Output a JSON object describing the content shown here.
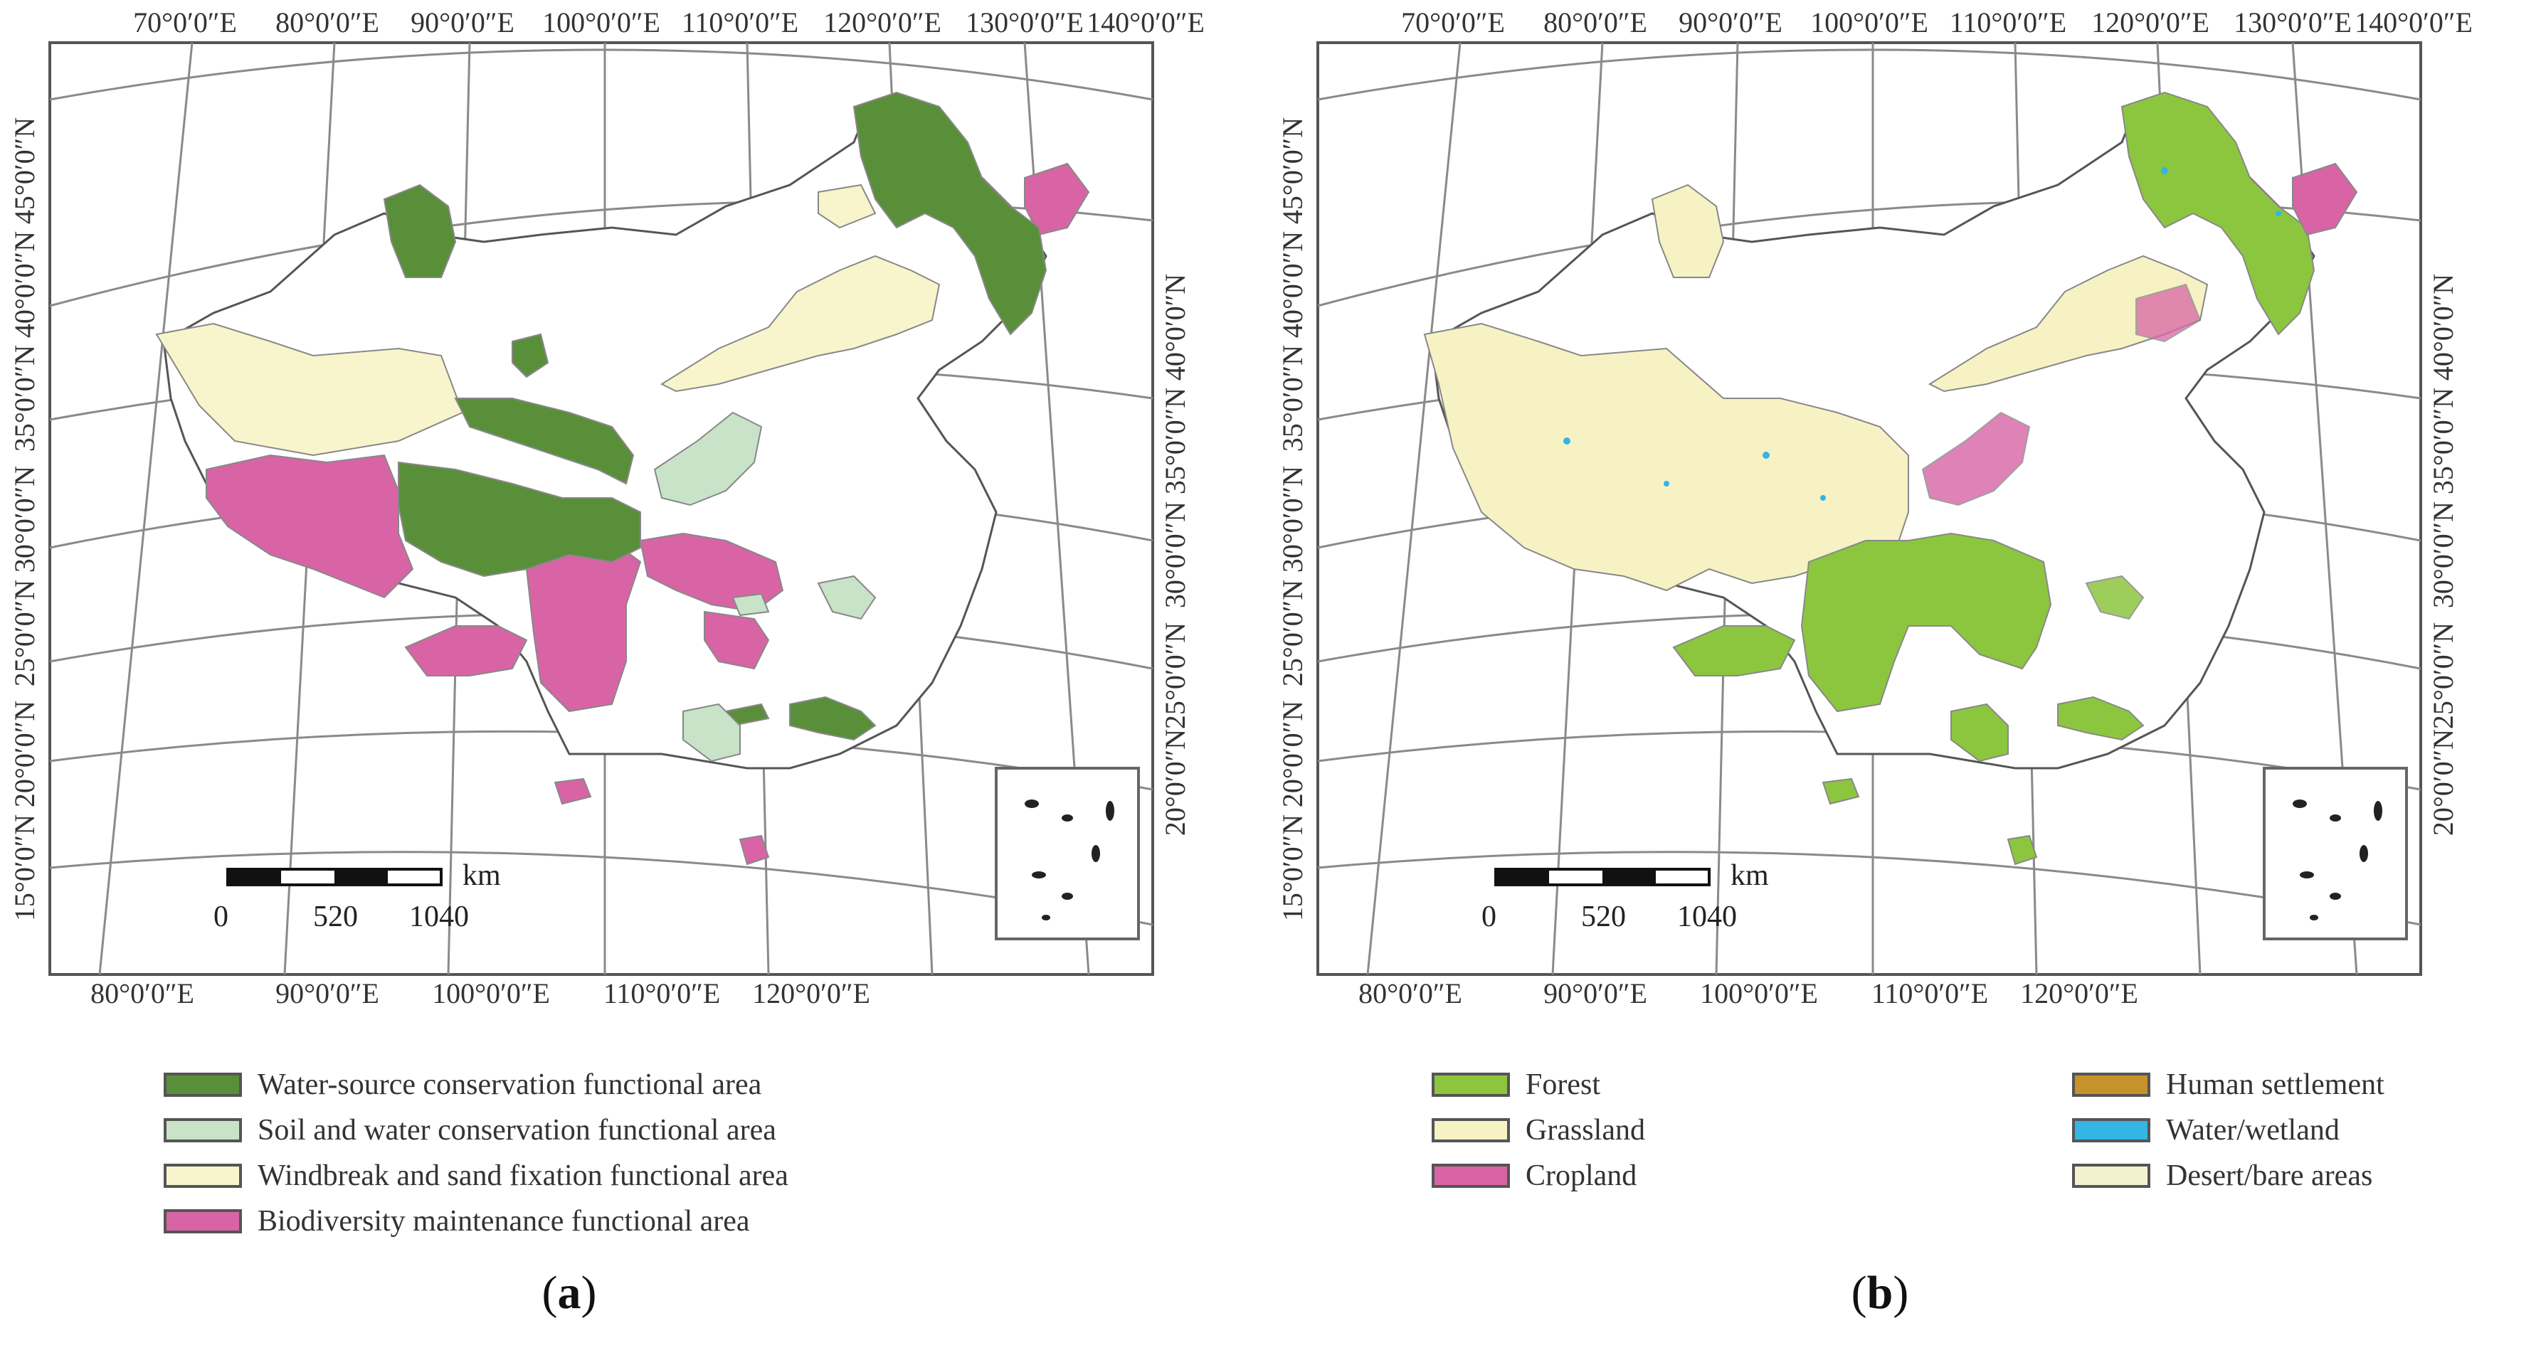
{
  "panel_a": {
    "caption_open": "(",
    "caption_letter": "a",
    "caption_close": ")",
    "top_ticks": [
      "70°0′0″E",
      "80°0′0″E",
      "90°0′0″E",
      "100°0′0″E",
      "110°0′0″E",
      "120°0′0″E",
      "130°0′0″E",
      "140°0′0″E"
    ],
    "bottom_ticks": [
      "80°0′0″E",
      "90°0′0″E",
      "100°0′0″E",
      "110°0′0″E",
      "120°0′0″E"
    ],
    "left_ticks": [
      "45°0′0″N",
      "40°0′0″N",
      "35°0′0″N",
      "30°0′0″N",
      "25°0′0″N",
      "20°0′0″N",
      "15°0′0″N"
    ],
    "right_ticks": [
      "40°0′0″N",
      "35°0′0″N",
      "30°0′0″N",
      "25°0′0″N",
      "20°0′0″N"
    ],
    "scale": {
      "unit": "km",
      "labels": [
        "0",
        "520",
        "1040"
      ]
    },
    "legend": [
      {
        "label": "Water-source conservation functional area",
        "color": "#5a8f3a"
      },
      {
        "label": "Soil and water conservation functional area",
        "color": "#c8e3c8"
      },
      {
        "label": "Windbreak and sand fixation functional area",
        "color": "#f8f5cc"
      },
      {
        "label": "Biodiversity maintenance functional area",
        "color": "#d864a6"
      }
    ]
  },
  "panel_b": {
    "caption_open": "(",
    "caption_letter": "b",
    "caption_close": ")",
    "top_ticks": [
      "70°0′0″E",
      "80°0′0″E",
      "90°0′0″E",
      "100°0′0″E",
      "110°0′0″E",
      "120°0′0″E",
      "130°0′0″E",
      "140°0′0″E"
    ],
    "bottom_ticks": [
      "80°0′0″E",
      "90°0′0″E",
      "100°0′0″E",
      "110°0′0″E",
      "120°0′0″E"
    ],
    "left_ticks": [
      "45°0′0″N",
      "40°0′0″N",
      "35°0′0″N",
      "30°0′0″N",
      "25°0′0″N",
      "20°0′0″N",
      "15°0′0″N"
    ],
    "right_ticks": [
      "40°0′0″N",
      "35°0′0″N",
      "30°0′0″N",
      "25°0′0″N",
      "20°0′0″N"
    ],
    "scale": {
      "unit": "km",
      "labels": [
        "0",
        "520",
        "1040"
      ]
    },
    "legend": [
      {
        "label": "Forest",
        "color": "#8cc63f"
      },
      {
        "label": "Grassland",
        "color": "#f6f2c4"
      },
      {
        "label": "Cropland",
        "color": "#d864a6"
      },
      {
        "label": "Human settlement",
        "color": "#c8922a"
      },
      {
        "label": "Water/wetland",
        "color": "#33b5e5"
      },
      {
        "label": "Desert/bare areas",
        "color": "#f4f1cf"
      }
    ]
  }
}
